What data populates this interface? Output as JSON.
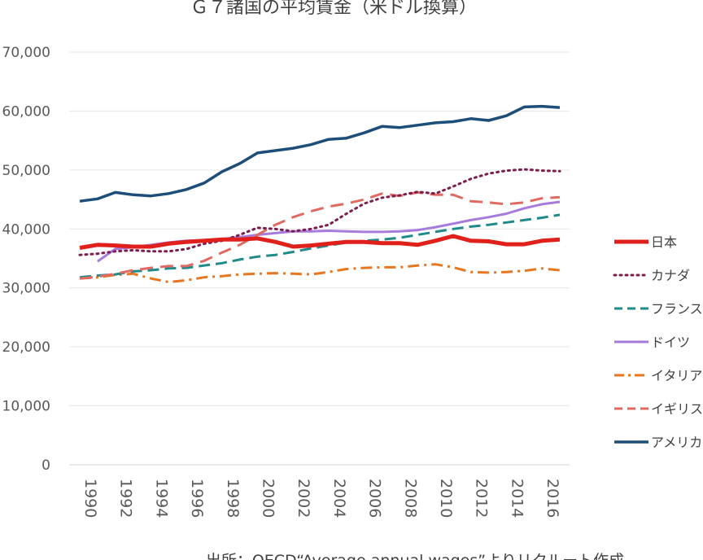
{
  "chart_data": {
    "type": "line",
    "title": "Ｇ７諸国の平均賃金（米ドル換算）",
    "source": "出所：OECD“Average annual wages”よりリクルート作成",
    "xlabel": "",
    "ylabel": "",
    "ylim": [
      0,
      70000
    ],
    "y_ticks": [
      "0",
      "10,000",
      "20,000",
      "30,000",
      "40,000",
      "50,000",
      "60,000",
      "70,000"
    ],
    "y_tick_values": [
      0,
      10000,
      20000,
      30000,
      40000,
      50000,
      60000,
      70000
    ],
    "x_tick_labels": [
      "1990",
      "1992",
      "1994",
      "1996",
      "1998",
      "2000",
      "2002",
      "2004",
      "2006",
      "2008",
      "2010",
      "2012",
      "2014",
      "2016"
    ],
    "x": [
      1990,
      1991,
      1992,
      1993,
      1994,
      1995,
      1996,
      1997,
      1998,
      1999,
      2000,
      2001,
      2002,
      2003,
      2004,
      2005,
      2006,
      2007,
      2008,
      2009,
      2010,
      2011,
      2012,
      2013,
      2014,
      2015,
      2016,
      2017
    ],
    "legend_position": "right",
    "series": [
      {
        "name": "日本",
        "color": "#e0201a",
        "dash": "solid",
        "width": 5,
        "values": [
          36800,
          37300,
          37200,
          37000,
          37000,
          37500,
          37800,
          38000,
          38200,
          38200,
          38400,
          37800,
          37000,
          37200,
          37500,
          37800,
          37800,
          37600,
          37600,
          37300,
          38000,
          38800,
          38000,
          37900,
          37400,
          37400,
          38000,
          38200
        ]
      },
      {
        "name": "カナダ",
        "color": "#7b1e4e",
        "dash": "dotted",
        "width": 3,
        "values": [
          35600,
          35800,
          36200,
          36400,
          36200,
          36200,
          36600,
          37500,
          38000,
          39000,
          40200,
          40000,
          39600,
          40000,
          40700,
          42600,
          44300,
          45300,
          45700,
          46300,
          46000,
          47200,
          48500,
          49400,
          49900,
          50100,
          49900,
          49800
        ]
      },
      {
        "name": "フランス",
        "color": "#1f8a8a",
        "dash": "dashed",
        "width": 3,
        "values": [
          31800,
          32100,
          32300,
          32800,
          33000,
          33300,
          33400,
          33800,
          34200,
          34800,
          35300,
          35600,
          36100,
          36700,
          37200,
          37700,
          38000,
          38200,
          38500,
          39000,
          39500,
          40000,
          40400,
          40700,
          41100,
          41500,
          41900,
          42400
        ]
      },
      {
        "name": "ドイツ",
        "color": "#a77bdc",
        "dash": "solid",
        "width": 3,
        "values": [
          null,
          34500,
          36600,
          36900,
          37300,
          37700,
          38000,
          38100,
          38300,
          38600,
          39000,
          39300,
          39600,
          39600,
          39700,
          39600,
          39500,
          39500,
          39600,
          39800,
          40300,
          40900,
          41500,
          42000,
          42600,
          43500,
          44200,
          44600
        ]
      },
      {
        "name": "イタリア",
        "color": "#e8761e",
        "dash": "dashdot",
        "width": 3,
        "values": [
          31600,
          31800,
          32200,
          32400,
          31600,
          31000,
          31300,
          31800,
          32000,
          32300,
          32400,
          32500,
          32400,
          32300,
          32700,
          33200,
          33400,
          33500,
          33500,
          33800,
          34000,
          33500,
          32700,
          32600,
          32700,
          32900,
          33300,
          33000
        ]
      },
      {
        "name": "イギリス",
        "color": "#e06a62",
        "dash": "longdash",
        "width": 3,
        "values": [
          31600,
          31900,
          32400,
          33000,
          33400,
          33700,
          33700,
          34600,
          36000,
          37300,
          39000,
          40700,
          42000,
          43000,
          43800,
          44300,
          45000,
          46000,
          45600,
          46200,
          45800,
          45800,
          44700,
          44500,
          44200,
          44500,
          45200,
          45400
        ]
      },
      {
        "name": "アメリカ",
        "color": "#1d4e79",
        "dash": "solid",
        "width": 3.5,
        "values": [
          44700,
          45100,
          46200,
          45800,
          45600,
          46000,
          46700,
          47800,
          49700,
          51100,
          52900,
          53300,
          53700,
          54300,
          55200,
          55400,
          56300,
          57400,
          57200,
          57600,
          58000,
          58200,
          58700,
          58400,
          59200,
          60700,
          60800,
          60600
        ]
      }
    ]
  }
}
